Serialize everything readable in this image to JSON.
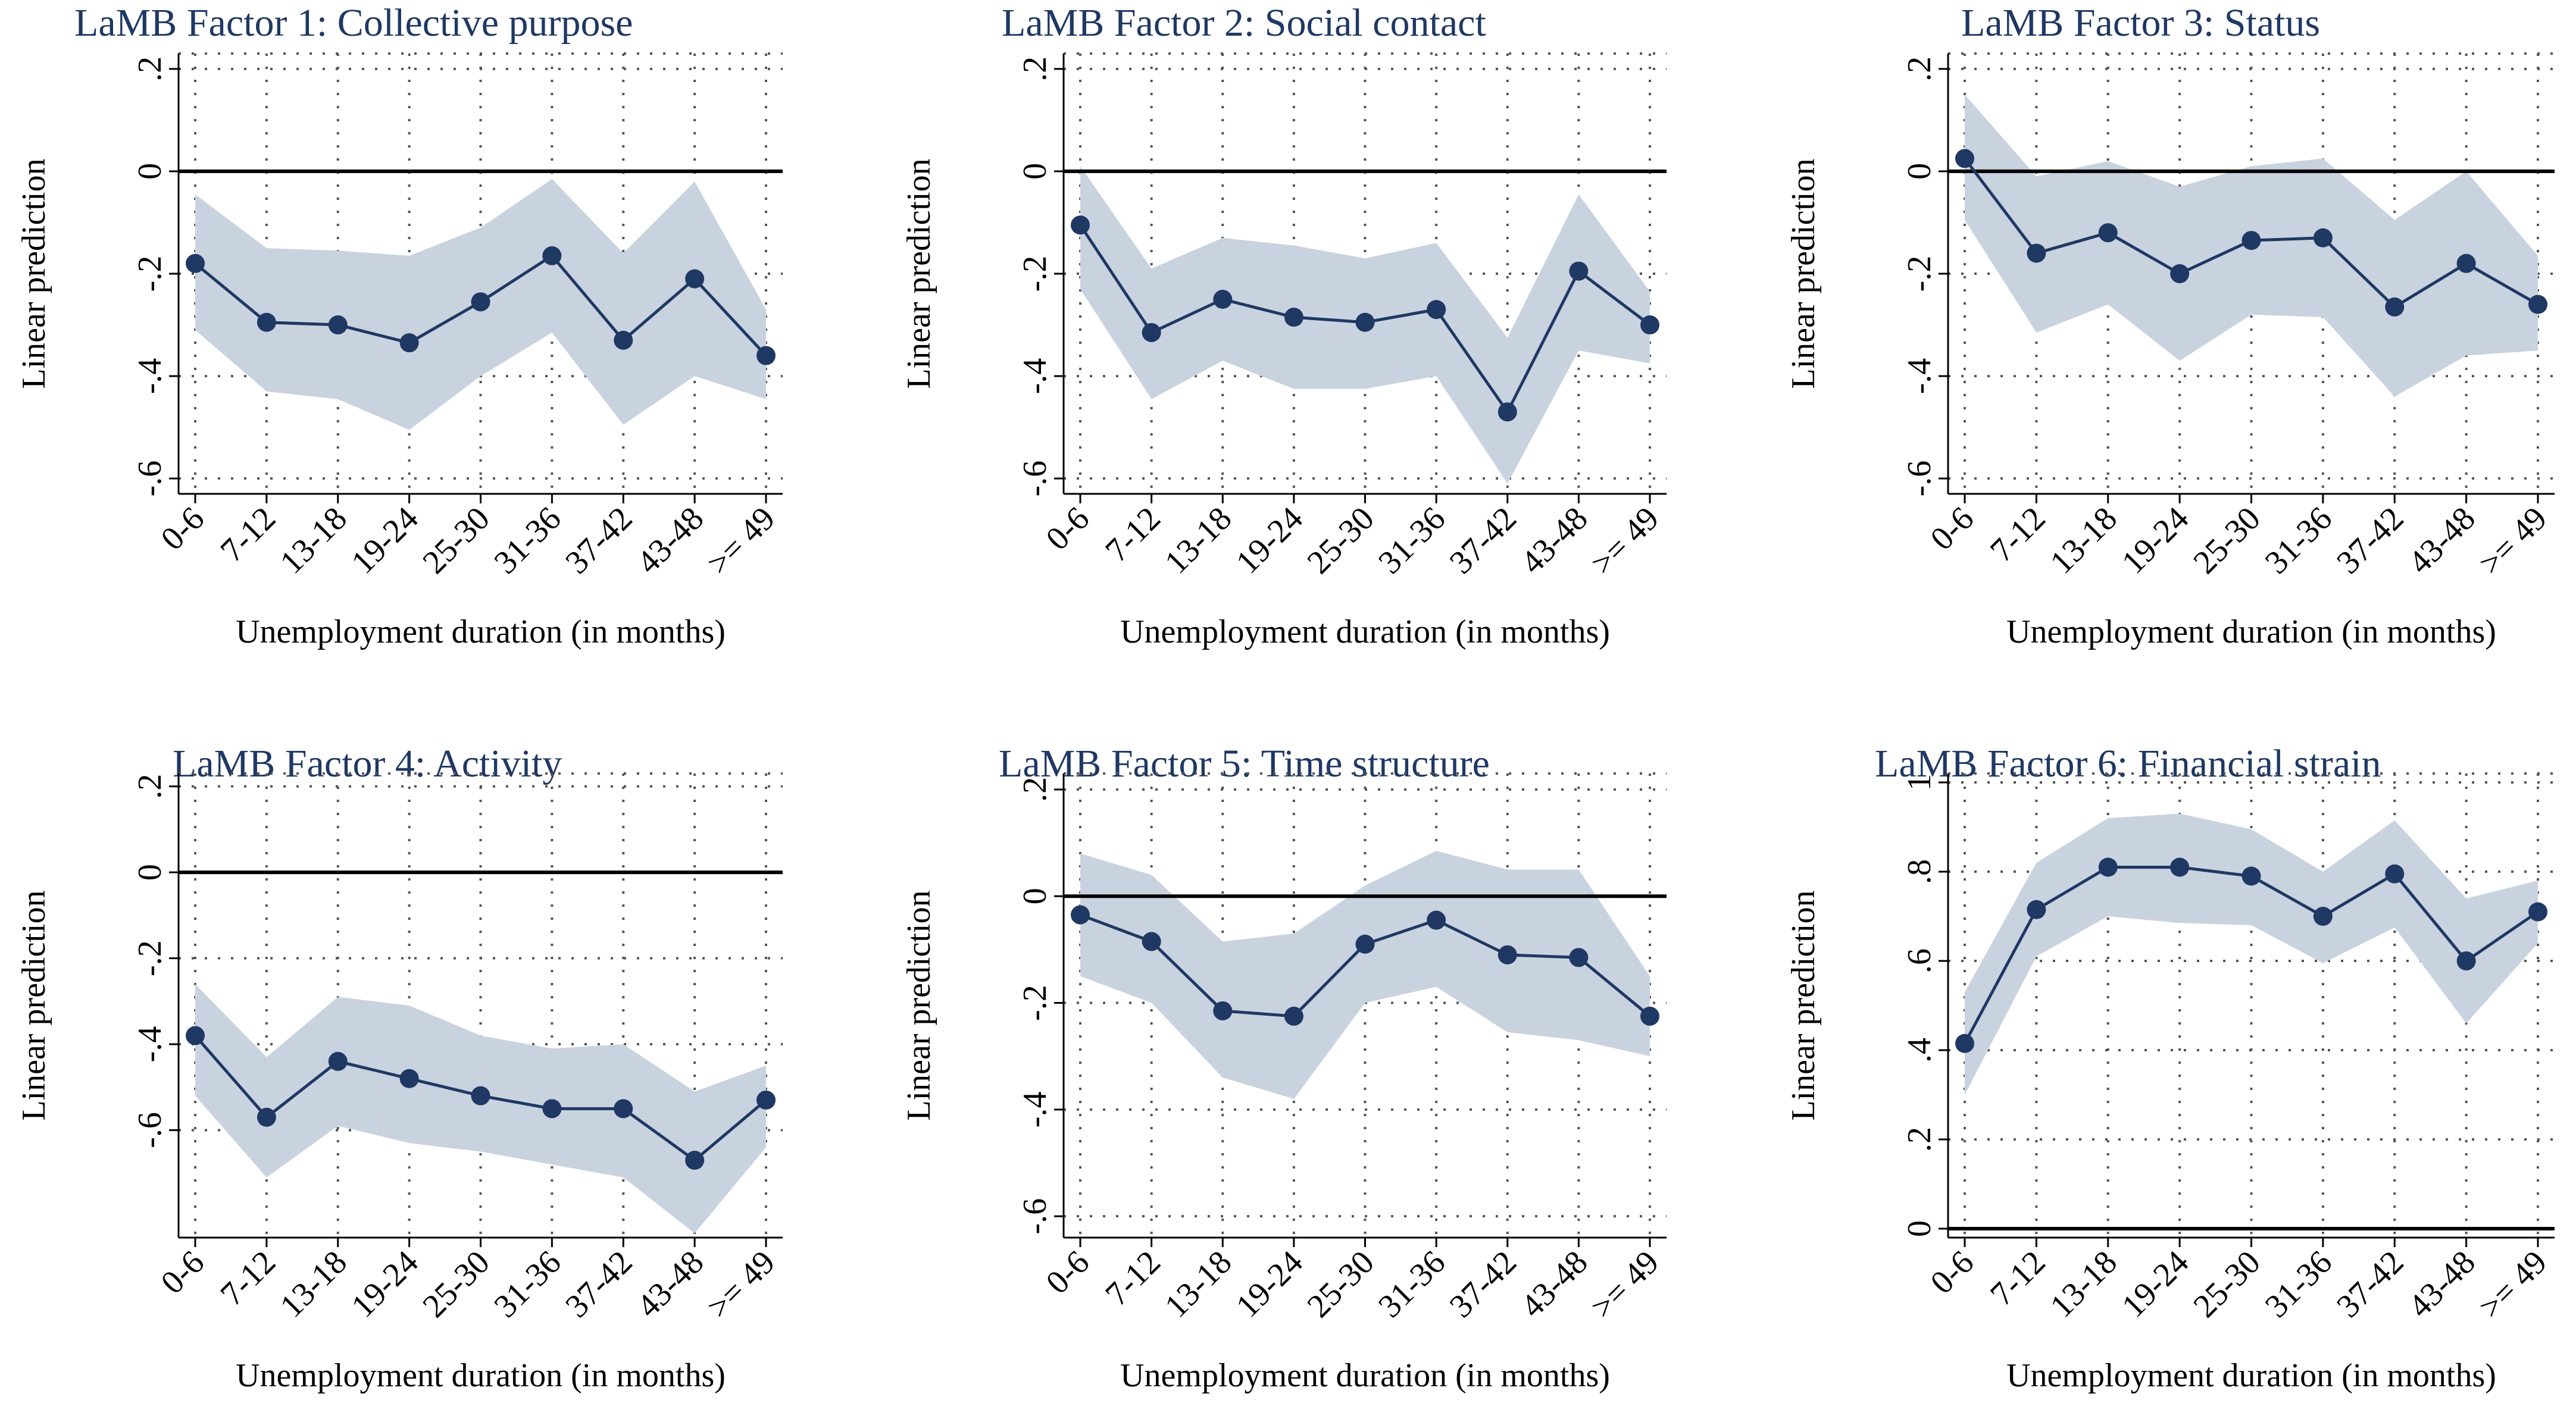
{
  "chart_data": [
    {
      "type": "line",
      "title": "LaMB Factor 1: Collective purpose",
      "xlabel": "Unemployment duration (in months)",
      "ylabel": "Linear prediction",
      "categories": [
        "0-6",
        "7-12",
        "13-18",
        "19-24",
        "25-30",
        "31-36",
        "37-42",
        "43-48",
        ">= 49"
      ],
      "yticks": [
        0.2,
        0,
        -0.2,
        -0.4,
        -0.6
      ],
      "ytick_labels": [
        ".2",
        "0",
        "-.2",
        "-.4",
        "-.6"
      ],
      "ylim": [
        -0.63,
        0.23
      ],
      "reference_line": 0,
      "series": [
        {
          "name": "Linear prediction",
          "values": [
            -0.18,
            -0.295,
            -0.3,
            -0.335,
            -0.255,
            -0.165,
            -0.33,
            -0.21,
            -0.36
          ],
          "ci_lower": [
            -0.31,
            -0.43,
            -0.445,
            -0.505,
            -0.4,
            -0.315,
            -0.495,
            -0.4,
            -0.445
          ],
          "ci_upper": [
            -0.045,
            -0.15,
            -0.155,
            -0.165,
            -0.11,
            -0.015,
            -0.16,
            -0.02,
            -0.27
          ]
        }
      ]
    },
    {
      "type": "line",
      "title": "LaMB Factor 2: Social contact",
      "xlabel": "Unemployment duration (in months)",
      "ylabel": "Linear prediction",
      "categories": [
        "0-6",
        "7-12",
        "13-18",
        "19-24",
        "25-30",
        "31-36",
        "37-42",
        "43-48",
        ">= 49"
      ],
      "yticks": [
        0.2,
        0,
        -0.2,
        -0.4,
        -0.6
      ],
      "ytick_labels": [
        ".2",
        "0",
        "-.2",
        "-.4",
        "-.6"
      ],
      "ylim": [
        -0.63,
        0.23
      ],
      "reference_line": 0,
      "series": [
        {
          "name": "Linear prediction",
          "values": [
            -0.105,
            -0.315,
            -0.25,
            -0.285,
            -0.295,
            -0.27,
            -0.47,
            -0.195,
            -0.3
          ],
          "ci_lower": [
            -0.23,
            -0.445,
            -0.37,
            -0.425,
            -0.425,
            -0.4,
            -0.61,
            -0.35,
            -0.375
          ],
          "ci_upper": [
            0.01,
            -0.19,
            -0.13,
            -0.145,
            -0.17,
            -0.14,
            -0.325,
            -0.045,
            -0.235
          ]
        }
      ]
    },
    {
      "type": "line",
      "title": "LaMB Factor 3: Status",
      "xlabel": "Unemployment duration (in months)",
      "ylabel": "Linear prediction",
      "categories": [
        "0-6",
        "7-12",
        "13-18",
        "19-24",
        "25-30",
        "31-36",
        "37-42",
        "43-48",
        ">= 49"
      ],
      "yticks": [
        0.2,
        0,
        -0.2,
        -0.4,
        -0.6
      ],
      "ytick_labels": [
        ".2",
        "0",
        "-.2",
        "-.4",
        "-.6"
      ],
      "ylim": [
        -0.63,
        0.23
      ],
      "reference_line": 0,
      "series": [
        {
          "name": "Linear prediction",
          "values": [
            0.025,
            -0.16,
            -0.12,
            -0.2,
            -0.135,
            -0.13,
            -0.265,
            -0.18,
            -0.26
          ],
          "ci_lower": [
            -0.095,
            -0.315,
            -0.26,
            -0.37,
            -0.28,
            -0.285,
            -0.44,
            -0.36,
            -0.35
          ],
          "ci_upper": [
            0.15,
            -0.01,
            0.02,
            -0.03,
            0.01,
            0.025,
            -0.095,
            0.0,
            -0.165
          ]
        }
      ]
    },
    {
      "type": "line",
      "title": "LaMB Factor 4: Activity",
      "xlabel": "Unemployment duration (in months)",
      "ylabel": "Linear prediction",
      "categories": [
        "0-6",
        "7-12",
        "13-18",
        "19-24",
        "25-30",
        "31-36",
        "37-42",
        "43-48",
        ">= 49"
      ],
      "yticks": [
        0.2,
        0,
        -0.2,
        -0.4,
        -0.6
      ],
      "ytick_labels": [
        ".2",
        "0",
        "-.2",
        "-.4",
        "-.6"
      ],
      "ylim": [
        -0.85,
        0.23
      ],
      "reference_line": 0,
      "series": [
        {
          "name": "Linear prediction",
          "values": [
            -0.38,
            -0.57,
            -0.44,
            -0.48,
            -0.52,
            -0.55,
            -0.55,
            -0.67,
            -0.53
          ],
          "ci_lower": [
            -0.52,
            -0.71,
            -0.59,
            -0.63,
            -0.65,
            -0.68,
            -0.71,
            -0.84,
            -0.64
          ],
          "ci_upper": [
            -0.26,
            -0.43,
            -0.29,
            -0.31,
            -0.38,
            -0.41,
            -0.4,
            -0.51,
            -0.45
          ]
        }
      ]
    },
    {
      "type": "line",
      "title": "LaMB Factor 5: Time structure",
      "xlabel": "Unemployment duration (in months)",
      "ylabel": "Linear prediction",
      "categories": [
        "0-6",
        "7-12",
        "13-18",
        "19-24",
        "25-30",
        "31-36",
        "37-42",
        "43-48",
        ">= 49"
      ],
      "yticks": [
        0.2,
        0,
        -0.2,
        -0.4,
        -0.6
      ],
      "ytick_labels": [
        ".2",
        "0",
        "-.2",
        "-.4",
        "-.6"
      ],
      "ylim": [
        -0.64,
        0.23
      ],
      "reference_line": 0,
      "series": [
        {
          "name": "Linear prediction",
          "values": [
            -0.035,
            -0.085,
            -0.215,
            -0.225,
            -0.09,
            -0.045,
            -0.11,
            -0.115,
            -0.225
          ],
          "ci_lower": [
            -0.15,
            -0.2,
            -0.34,
            -0.38,
            -0.2,
            -0.17,
            -0.255,
            -0.27,
            -0.3
          ],
          "ci_upper": [
            0.08,
            0.04,
            -0.085,
            -0.07,
            0.02,
            0.085,
            0.05,
            0.05,
            -0.15
          ]
        }
      ]
    },
    {
      "type": "line",
      "title": "LaMB Factor 6: Financial strain",
      "xlabel": "Unemployment duration (in months)",
      "ylabel": "Linear prediction",
      "categories": [
        "0-6",
        "7-12",
        "13-18",
        "19-24",
        "25-30",
        "31-36",
        "37-42",
        "43-48",
        ">= 49"
      ],
      "yticks": [
        1,
        0.8,
        0.6,
        0.4,
        0.2,
        0
      ],
      "ytick_labels": [
        "1",
        ".8",
        ".6",
        ".4",
        ".2",
        "0"
      ],
      "ylim": [
        -0.02,
        1.02
      ],
      "reference_line": 0,
      "series": [
        {
          "name": "Linear prediction",
          "values": [
            0.415,
            0.715,
            0.81,
            0.81,
            0.79,
            0.7,
            0.795,
            0.6,
            0.71
          ],
          "ci_lower": [
            0.3,
            0.61,
            0.7,
            0.685,
            0.68,
            0.595,
            0.675,
            0.46,
            0.64
          ],
          "ci_upper": [
            0.53,
            0.82,
            0.92,
            0.93,
            0.895,
            0.8,
            0.915,
            0.74,
            0.78
          ]
        }
      ]
    }
  ]
}
